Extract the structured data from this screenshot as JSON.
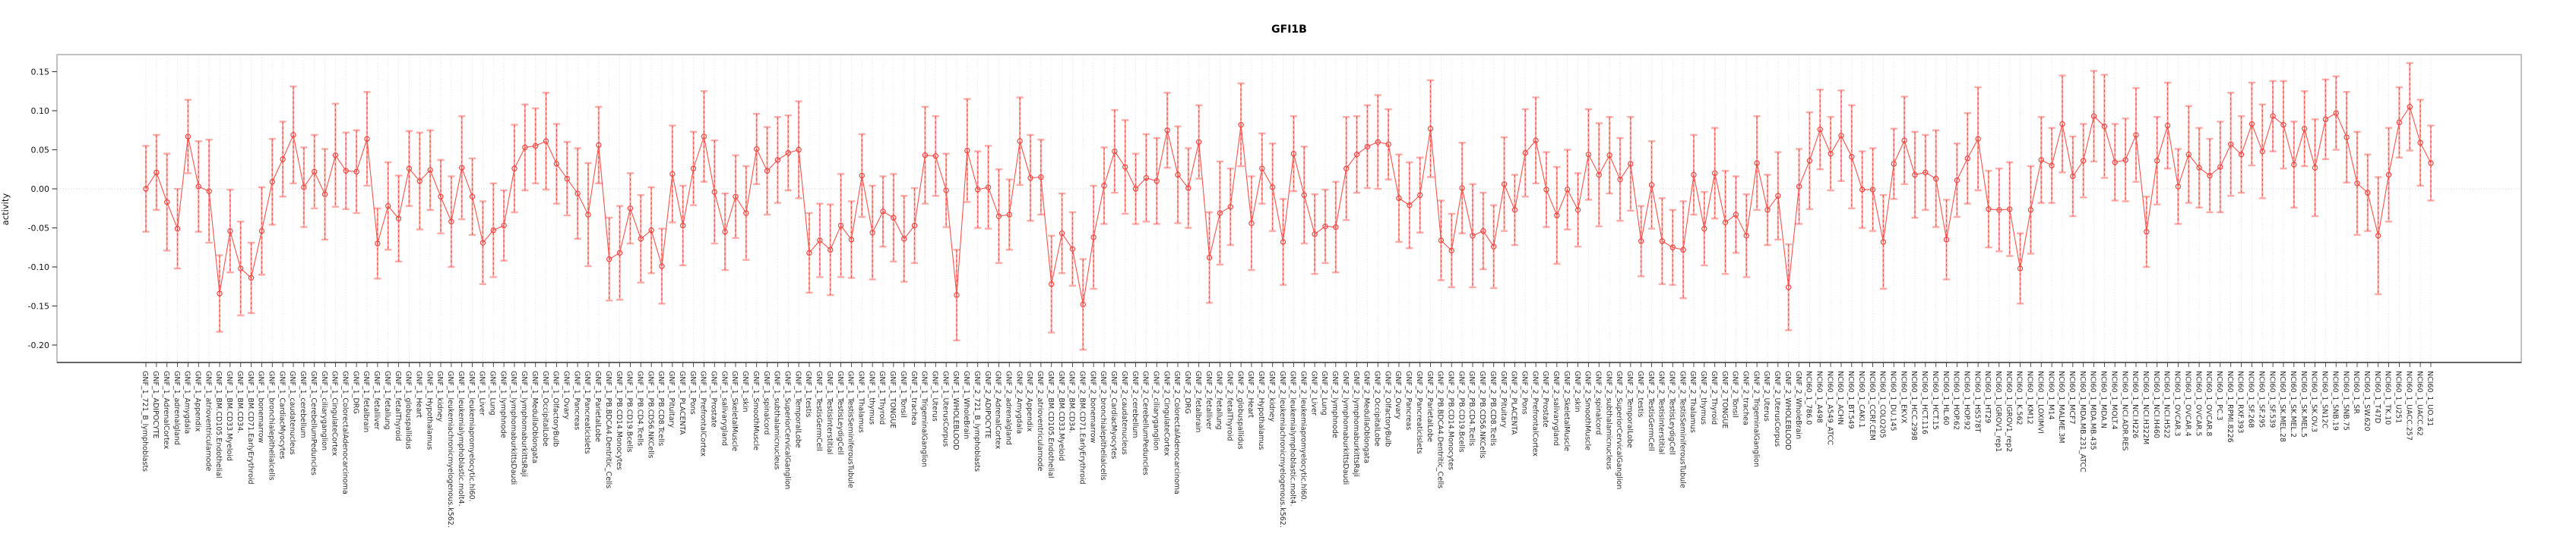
{
  "chart_data": {
    "type": "line",
    "title": "GFI1B",
    "xlabel": "",
    "ylabel": "activity",
    "ylim": [
      -0.222,
      0.172
    ],
    "ytick_labels": [
      "0.15",
      "0.10",
      "0.05",
      "0.00",
      "-0.05",
      "-0.10",
      "-0.15",
      "-0.20"
    ],
    "ytick_values": [
      0.15,
      0.1,
      0.05,
      0.0,
      -0.05,
      -0.1,
      -0.15,
      -0.2
    ],
    "legend": "none",
    "marker": "open-circle",
    "error_bars": true,
    "grid": {
      "vertical_dotted_per_category": true,
      "dotted_zero_line": true
    },
    "colors": {
      "series": "#f4534e",
      "point": "#ef4640",
      "error_bar": "#ffaaa6",
      "error_bar_dash": "#ee4f4a",
      "grid": "#dcdcdc",
      "zero_line": "#c8c8c8",
      "box_border": "#a8a8a8",
      "axis_line": "#1f1f1f",
      "tick": "#3a3a3a",
      "x_label": "#2e2e2e",
      "y_label": "#141414"
    },
    "categories": [
      "GNF_1_721_B_lymphoblasts",
      "GNF_1_ADIPOCYTE",
      "GNF_1_AdrenalCortex",
      "GNF_1_adrenalgland",
      "GNF_1_Amygdala",
      "GNF_1_Appendix",
      "GNF_1_atrioventricularnode",
      "GNF_1_BM.CD105.Endothelial",
      "GNF_1_BM.CD33.Myeloid",
      "GNF_1_BM.CD34.",
      "GNF_1_BM.CD71.EarlyErythroid",
      "GNF_1_bonemarrow",
      "GNF_1_bronchialepithelialcells",
      "GNF_1_CardiacMyocytes",
      "GNF_1_caudatenucleus",
      "GNF_1_cerebellum",
      "GNF_1_CerebellumPeduncles",
      "GNF_1_ciliaryganglion",
      "GNF_1_CingulateCortex",
      "GNF_1_ColorectalAdenocarcinoma",
      "GNF_1_DRG",
      "GNF_1_fetalbrain",
      "GNF_1_fetalliver",
      "GNF_1_fetallung",
      "GNF_1_fetalThyroid",
      "GNF_1_globuspallidus",
      "GNF_1_Heart",
      "GNF_1_Hypothalamus",
      "GNF_1_kidney",
      "GNF_1_leukemiachronicmyelogenous.k562.",
      "GNF_1_leukemialymphoblastic.molt4.",
      "GNF_1_leukemiapromyelocytic.hl60.",
      "GNF_1_Liver",
      "GNF_1_Lung",
      "GNF_1_lymphnode",
      "GNF_1_lymphomaburkittsDaudi",
      "GNF_1_lymphomaburkittsRaji",
      "GNF_1_MedullaOblongata",
      "GNF_1_OccipitalLobe",
      "GNF_1_OlfactoryBulb",
      "GNF_1_Ovary",
      "GNF_1_Pancreas",
      "GNF_1_PancreaticIslets",
      "GNF_1_ParietalLobe",
      "GNF_1_PB.BDCA4.Dentritic_Cells",
      "GNF_1_PB.CD14.Monocytes",
      "GNF_1_PB.CD19.Bcells",
      "GNF_1_PB.CD4.Tcells",
      "GNF_1_PB.CD56.NKCells",
      "GNF_1_PB.CD8.Tcells",
      "GNF_1_Pituitary",
      "GNF_1_PLACENTA",
      "GNF_1_Pons",
      "GNF_1_PrefrontalCortex",
      "GNF_1_Prostate",
      "GNF_1_salivarygland",
      "GNF_1_SkeletalMuscle",
      "GNF_1_skin",
      "GNF_1_SmoothMuscle",
      "GNF_1_spinalcord",
      "GNF_1_subthalamicnucleus",
      "GNF_1_SuperiorCervicalGanglion",
      "GNF_1_TemporalLobe",
      "GNF_1_testis",
      "GNF_1_TestisGermCell",
      "GNF_1_TestisInterstitial",
      "GNF_1_TestisLeydigCell",
      "GNF_1_TestisSeminiferousTubule",
      "GNF_1_Thalamus",
      "GNF_1_thymus",
      "GNF_1_Thyroid",
      "GNF_1_TONGUE",
      "GNF_1_Tonsil",
      "GNF_1_trachea",
      "GNF_1_TrigeminalGanglion",
      "GNF_1_Uterus",
      "GNF_1_UterusCorpus",
      "GNF_1_WHOLEBLOOD",
      "GNF_1_WholeBrain",
      "GNF_2_721_B_lymphoblasts",
      "GNF_2_ADIPOCYTE",
      "GNF_2_AdrenalCortex",
      "GNF_2_adrenalgland",
      "GNF_2_Amygdala",
      "GNF_2_Appendix",
      "GNF_2_atrioventricularnode",
      "GNF_2_BM.CD105.Endothelial",
      "GNF_2_BM.CD33.Myeloid",
      "GNF_2_BM.CD34.",
      "GNF_2_BM.CD71.EarlyErythroid",
      "GNF_2_bonemarrow",
      "GNF_2_bronchialepithelialcells",
      "GNF_2_CardiacMyocytes",
      "GNF_2_caudatenucleus",
      "GNF_2_cerebellum",
      "GNF_2_CerebellumPeduncles",
      "GNF_2_ciliaryganglion",
      "GNF_2_CingulateCortex",
      "GNF_2_ColorectalAdenocarcinoma",
      "GNF_2_DRG",
      "GNF_2_fetalbrain",
      "GNF_2_fetalliver",
      "GNF_2_fetallung",
      "GNF_2_fetalThyroid",
      "GNF_2_globuspallidus",
      "GNF_2_Heart",
      "GNF_2_Hypothalamus",
      "GNF_2_kidney",
      "GNF_2_leukemiachronicmyelogenous.k562.",
      "GNF_2_leukemialymphoblastic.molt4.",
      "GNF_2_leukemiapromyelocytic.hl60.",
      "GNF_2_Liver",
      "GNF_2_Lung",
      "GNF_2_lymphnode",
      "GNF_2_lymphomaburkittsDaudi",
      "GNF_2_lymphomaburkittsRaji",
      "GNF_2_MedullaOblongata",
      "GNF_2_OccipitalLobe",
      "GNF_2_OlfactoryBulb",
      "GNF_2_Ovary",
      "GNF_2_Pancreas",
      "GNF_2_PancreaticIslets",
      "GNF_2_ParietalLobe",
      "GNF_2_PB.BDCA4.Dentritic_Cells",
      "GNF_2_PB.CD14.Monocytes",
      "GNF_2_PB.CD19.Bcells",
      "GNF_2_PB.CD4.Tcells",
      "GNF_2_PB.CD56.NKCells",
      "GNF_2_PB.CD8.Tcells",
      "GNF_2_Pituitary",
      "GNF_2_PLACENTA",
      "GNF_2_Pons",
      "GNF_2_PrefrontalCortex",
      "GNF_2_Prostate",
      "GNF_2_salivarygland",
      "GNF_2_SkeletalMuscle",
      "GNF_2_skin",
      "GNF_2_SmoothMuscle",
      "GNF_2_spinalcord",
      "GNF_2_subthalamicnucleus",
      "GNF_2_SuperiorCervicalGanglion",
      "GNF_2_TemporalLobe",
      "GNF_2_testis",
      "GNF_2_TestisGermCell",
      "GNF_2_TestisInterstitial",
      "GNF_2_TestisLeydigCell",
      "GNF_2_TestisSeminiferousTubule",
      "GNF_2_Thalamus",
      "GNF_2_thymus",
      "GNF_2_Thyroid",
      "GNF_2_TONGUE",
      "GNF_2_Tonsil",
      "GNF_2_trachea",
      "GNF_2_TrigeminalGanglion",
      "GNF_2_Uterus",
      "GNF_2_UterusCorpus",
      "GNF_2_WHOLEBLOOD",
      "GNF_2_WholeBrain",
      "NCI60_1_786.0",
      "NCI60_1_A498",
      "NCI60_1_A549_ATCC",
      "NCI60_1_ACHN",
      "NCI60_1_BT.549",
      "NCI60_1_CAKI.1",
      "NCI60_1_CCRF.CEM",
      "NCI60_1_COLO205",
      "NCI60_1_DU.145",
      "NCI60_1_EKVX",
      "NCI60_1_HCC.2998",
      "NCI60_1_HCT.116",
      "NCI60_1_HCT.15",
      "NCI60_1_HL.60",
      "NCI60_1_HOP.62",
      "NCI60_1_HOP.92",
      "NCI60_1_HS578T",
      "NCI60_1_HT29",
      "NCI60_1_IGROV1_rep1",
      "NCI60_1_IGROV1_rep2",
      "NCI60_1_K.562",
      "NCI60_1_KM12",
      "NCI60_1_LOXIMVI",
      "NCI60_1_M14",
      "NCI60_1_MALME.3M",
      "NCI60_1_MCF7",
      "NCI60_1_MDA.MB.231_ATCC",
      "NCI60_1_MDA.MB.435",
      "NCI60_1_MDA.N",
      "NCI60_1_MOLT.4",
      "NCI60_1_NCI.ADR.RES",
      "NCI60_1_NCI.H226",
      "NCI60_1_NCI.H322M",
      "NCI60_1_NCI.H460",
      "NCI60_1_NCI.H522",
      "NCI60_1_OVCAR.3",
      "NCI60_1_OVCAR.4",
      "NCI60_1_OVCAR.5",
      "NCI60_1_OVCAR.8",
      "NCI60_1_PC.3",
      "NCI60_1_RPMI.8226",
      "NCI60_1_RXF.393",
      "NCI60_1_SF.268",
      "NCI60_1_SF.295",
      "NCI60_1_SF.539",
      "NCI60_1_SK.MEL.28",
      "NCI60_1_SK.MEL.2",
      "NCI60_1_SK.MEL.5",
      "NCI60_1_SK.OV.3",
      "NCI60_1_SN12C",
      "NCI60_1_SNB.19",
      "NCI60_1_SNB.75",
      "NCI60_1_SR",
      "NCI60_1_SW.620",
      "NCI60_1_T47D",
      "NCI60_1_TK.10",
      "NCI60_1_U251",
      "NCI60_1_UACC.257",
      "NCI60_1_UACC.62",
      "NCI60_1_UO.31"
    ],
    "values": [
      0.0,
      0.021,
      -0.017,
      -0.051,
      0.067,
      0.003,
      -0.003,
      -0.134,
      -0.054,
      -0.102,
      -0.114,
      -0.054,
      0.009,
      0.038,
      0.069,
      0.002,
      0.022,
      -0.007,
      0.043,
      0.023,
      0.022,
      0.064,
      -0.07,
      -0.022,
      -0.038,
      0.026,
      0.01,
      0.024,
      -0.01,
      -0.042,
      0.027,
      -0.01,
      -0.069,
      -0.053,
      -0.047,
      0.026,
      0.053,
      0.055,
      0.061,
      0.032,
      0.013,
      -0.006,
      -0.033,
      0.056,
      -0.09,
      -0.082,
      -0.025,
      -0.064,
      -0.053,
      -0.099,
      0.019,
      -0.047,
      0.026,
      0.067,
      -0.004,
      -0.055,
      -0.01,
      -0.031,
      0.051,
      0.023,
      0.037,
      0.046,
      0.05,
      -0.082,
      -0.066,
      -0.078,
      -0.047,
      -0.065,
      0.017,
      -0.056,
      -0.029,
      -0.037,
      -0.064,
      -0.047,
      0.043,
      0.042,
      -0.002,
      -0.136,
      0.049,
      -0.001,
      0.002,
      -0.035,
      -0.033,
      0.061,
      0.014,
      0.015,
      -0.122,
      -0.057,
      -0.077,
      -0.148,
      -0.062,
      0.004,
      0.048,
      0.028,
      0.0,
      0.014,
      0.01,
      0.075,
      0.018,
      0.001,
      0.06,
      -0.088,
      -0.031,
      -0.023,
      0.082,
      -0.044,
      0.026,
      0.002,
      -0.068,
      0.045,
      -0.008,
      -0.058,
      -0.048,
      -0.049,
      0.026,
      0.044,
      0.054,
      0.06,
      0.057,
      -0.012,
      -0.021,
      -0.008,
      0.077,
      -0.066,
      -0.079,
      0.001,
      -0.06,
      -0.054,
      -0.074,
      0.006,
      -0.027,
      0.046,
      0.062,
      -0.001,
      -0.034,
      -0.001,
      -0.027,
      0.044,
      0.018,
      0.043,
      0.012,
      0.032,
      -0.067,
      0.005,
      -0.067,
      -0.075,
      -0.078,
      0.018,
      -0.051,
      0.02,
      -0.043,
      -0.033,
      -0.06,
      0.033,
      -0.027,
      -0.009,
      -0.126,
      0.003,
      0.036,
      0.076,
      0.045,
      0.068,
      0.041,
      -0.001,
      -0.001,
      -0.068,
      0.032,
      0.062,
      0.018,
      0.021,
      0.013,
      -0.065,
      0.011,
      0.039,
      0.064,
      -0.026,
      -0.027,
      -0.026,
      -0.102,
      -0.027,
      0.037,
      0.03,
      0.083,
      0.016,
      0.036,
      0.093,
      0.08,
      0.034,
      0.037,
      0.069,
      -0.055,
      0.036,
      0.081,
      0.003,
      0.044,
      0.027,
      0.017,
      0.028,
      0.057,
      0.044,
      0.083,
      0.048,
      0.093,
      0.082,
      0.031,
      0.077,
      0.027,
      0.089,
      0.097,
      0.066,
      0.007,
      -0.005,
      -0.06,
      0.018,
      0.085,
      0.105,
      0.059,
      0.033
    ],
    "se": [
      0.055,
      0.048,
      0.062,
      0.051,
      0.047,
      0.058,
      0.066,
      0.049,
      0.053,
      0.06,
      0.045,
      0.056,
      0.055,
      0.048,
      0.062,
      0.051,
      0.047,
      0.058,
      0.066,
      0.049,
      0.053,
      0.06,
      0.045,
      0.056,
      0.055,
      0.048,
      0.062,
      0.051,
      0.047,
      0.058,
      0.066,
      0.049,
      0.053,
      0.06,
      0.045,
      0.056,
      0.055,
      0.048,
      0.062,
      0.051,
      0.047,
      0.058,
      0.066,
      0.049,
      0.053,
      0.06,
      0.045,
      0.056,
      0.055,
      0.048,
      0.062,
      0.051,
      0.047,
      0.058,
      0.066,
      0.049,
      0.053,
      0.06,
      0.045,
      0.056,
      0.055,
      0.048,
      0.062,
      0.051,
      0.047,
      0.058,
      0.066,
      0.049,
      0.053,
      0.06,
      0.045,
      0.056,
      0.055,
      0.048,
      0.062,
      0.051,
      0.047,
      0.058,
      0.066,
      0.049,
      0.053,
      0.06,
      0.045,
      0.056,
      0.055,
      0.048,
      0.062,
      0.051,
      0.047,
      0.058,
      0.066,
      0.049,
      0.053,
      0.06,
      0.045,
      0.056,
      0.055,
      0.048,
      0.062,
      0.051,
      0.047,
      0.058,
      0.066,
      0.049,
      0.053,
      0.06,
      0.045,
      0.056,
      0.055,
      0.048,
      0.062,
      0.051,
      0.047,
      0.058,
      0.066,
      0.049,
      0.053,
      0.06,
      0.045,
      0.056,
      0.055,
      0.048,
      0.062,
      0.051,
      0.047,
      0.058,
      0.066,
      0.049,
      0.053,
      0.06,
      0.045,
      0.056,
      0.055,
      0.048,
      0.062,
      0.051,
      0.047,
      0.058,
      0.066,
      0.049,
      0.053,
      0.06,
      0.045,
      0.056,
      0.055,
      0.048,
      0.062,
      0.051,
      0.047,
      0.058,
      0.066,
      0.049,
      0.053,
      0.06,
      0.045,
      0.056,
      0.055,
      0.048,
      0.062,
      0.051,
      0.047,
      0.058,
      0.066,
      0.049,
      0.053,
      0.06,
      0.045,
      0.056,
      0.055,
      0.048,
      0.062,
      0.051,
      0.047,
      0.058,
      0.066,
      0.049,
      0.053,
      0.06,
      0.045,
      0.056,
      0.055,
      0.048,
      0.062,
      0.051,
      0.047,
      0.058,
      0.066,
      0.049,
      0.053,
      0.06,
      0.045,
      0.056,
      0.055,
      0.048,
      0.062,
      0.051,
      0.047,
      0.058,
      0.066,
      0.049,
      0.053,
      0.06,
      0.045,
      0.056,
      0.055,
      0.048,
      0.062,
      0.051,
      0.047,
      0.058,
      0.066,
      0.049,
      0.075,
      0.06,
      0.045,
      0.056,
      0.055,
      0.048
    ]
  }
}
